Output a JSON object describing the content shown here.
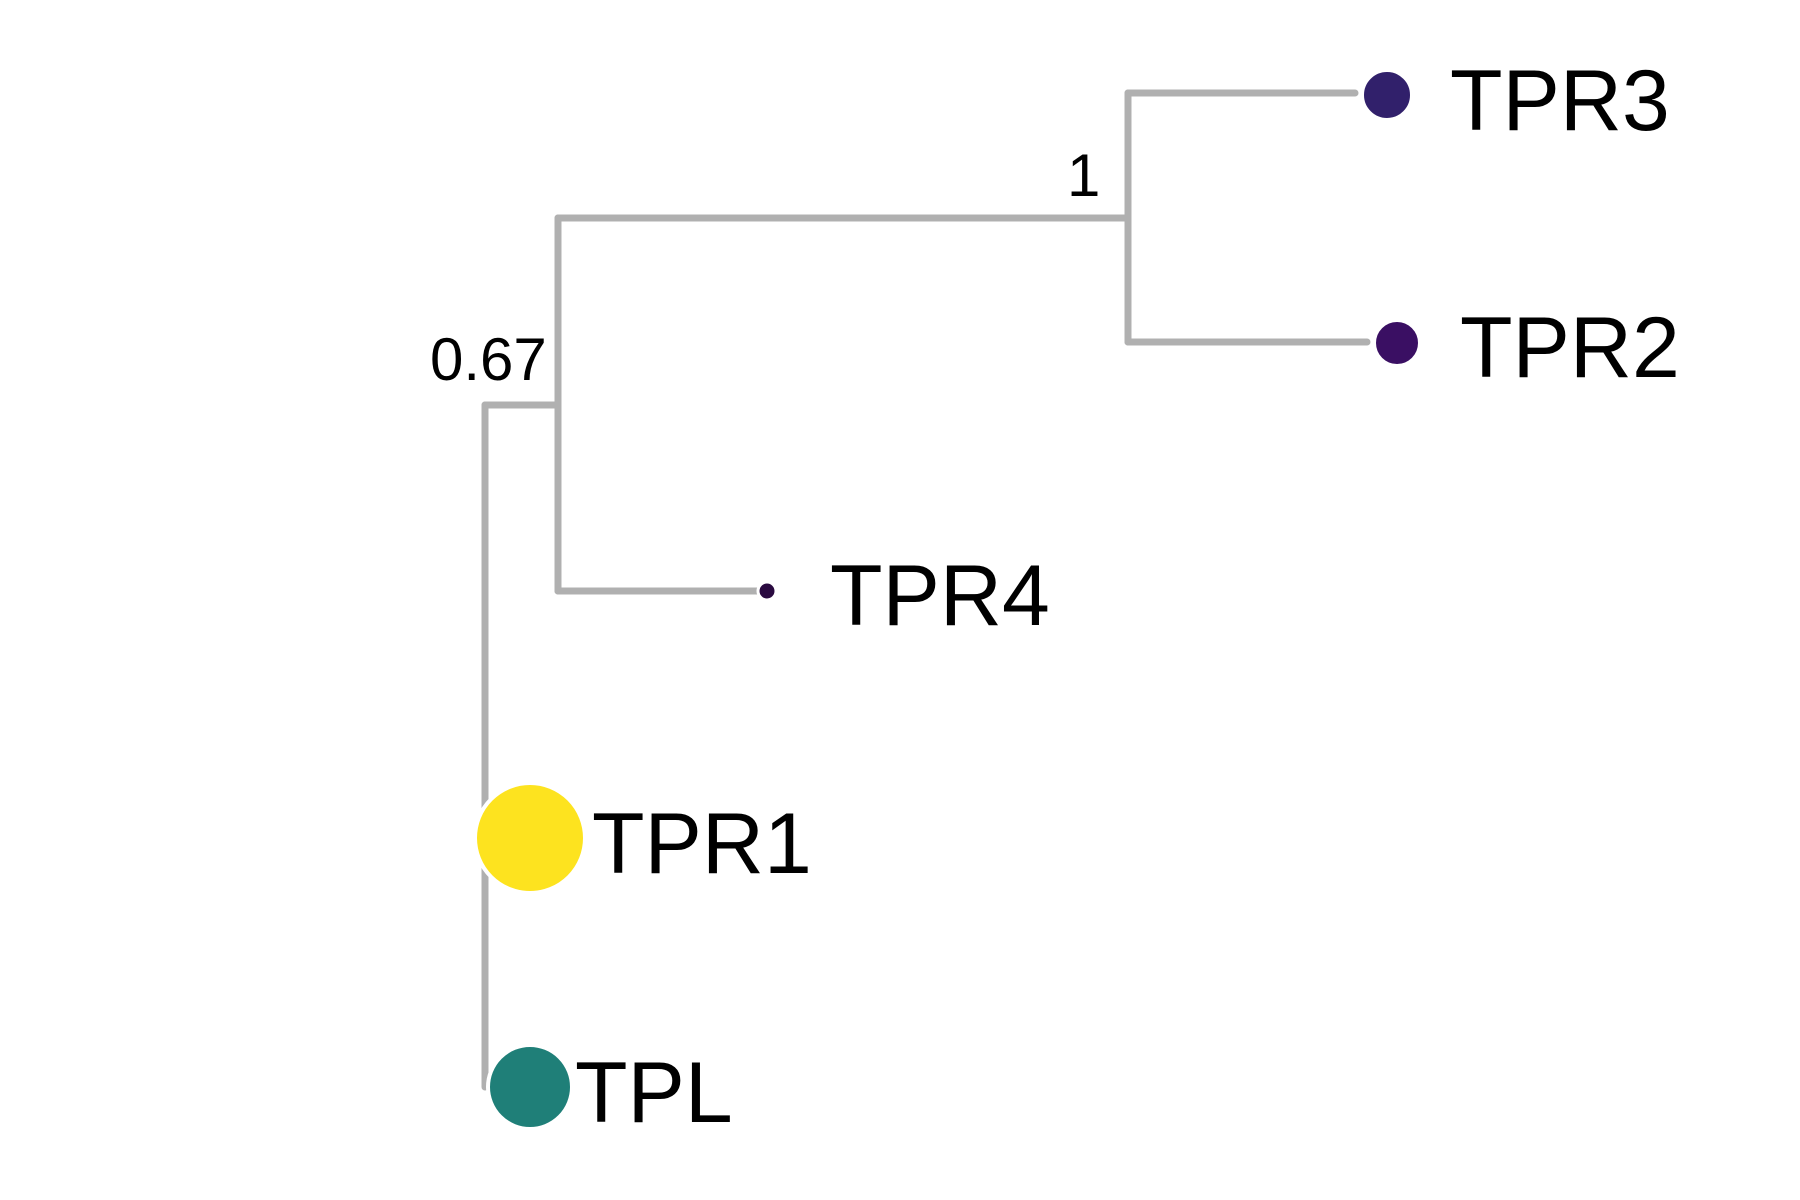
{
  "tree": {
    "layout": "rectangular",
    "branch_color": "#b0b0b0",
    "support_values": [
      {
        "node": "TPR2-TPR3",
        "value": "1"
      },
      {
        "node": "TPR2-TPR3-TPR4",
        "value": "0.67"
      }
    ],
    "tips": [
      {
        "label": "TPR3",
        "color": "#31206b",
        "relative_size": 0.45
      },
      {
        "label": "TPR2",
        "color": "#3a0f63",
        "relative_size": 0.4
      },
      {
        "label": "TPR4",
        "color": "#2a0a40",
        "relative_size": 0.15
      },
      {
        "label": "TPR1",
        "color": "#fde31f",
        "relative_size": 1.0
      },
      {
        "label": "TPL",
        "color": "#1f7f78",
        "relative_size": 0.75
      }
    ]
  }
}
